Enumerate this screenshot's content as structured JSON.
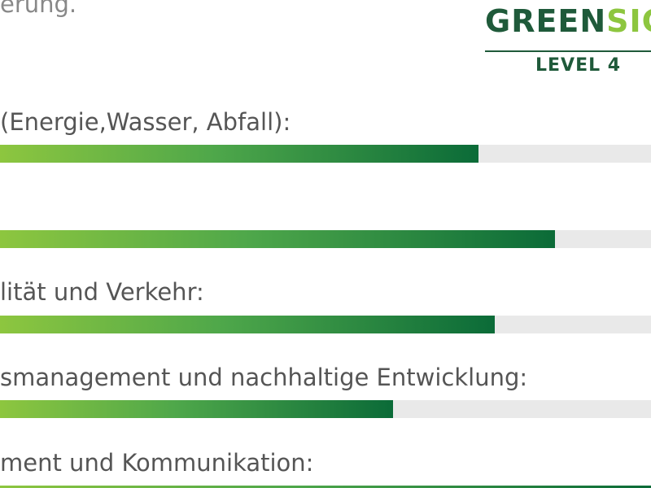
{
  "intro_text": "erung.",
  "logo": {
    "word_primary": "GREEN",
    "word_accent": "SIG",
    "level": "LEVEL 4",
    "colors": {
      "primary": "#1f5a3a",
      "accent": "#8dc63f"
    },
    "icon": "leaf-icon"
  },
  "categories": [
    {
      "label": "(Energie,Wasser, Abfall):",
      "progress": 0.735
    },
    {
      "label": "",
      "progress": 0.852
    },
    {
      "label": "lität und Verkehr:",
      "progress": 0.76
    },
    {
      "label": "smanagement und nachhaltige Entwicklung:",
      "progress": 0.604
    },
    {
      "label": "ment und Kommunikation:",
      "progress": 1.0
    }
  ],
  "bar_colors": {
    "start": "#8dc63f",
    "end": "#0b6b38",
    "track": "#e9e9e9"
  }
}
